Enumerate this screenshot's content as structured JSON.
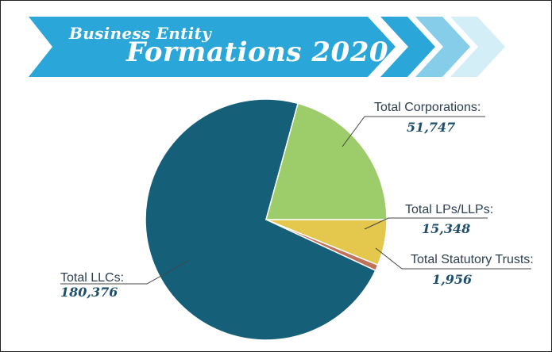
{
  "title": {
    "line1": "Business Entity",
    "line2": "Formations 2020"
  },
  "colors": {
    "banner": "#2aa6d8",
    "chevron_mid": "#86cdea",
    "chevron_light": "#d4eef8",
    "leader": "#444444"
  },
  "chart_data": {
    "type": "pie",
    "title": "Business Entity Formations 2020",
    "slices": [
      {
        "label": "Total Corporations:",
        "value": 51747,
        "value_text": "51,747",
        "color": "#9dcd6a"
      },
      {
        "label": "Total LPs/LLPs:",
        "value": 15348,
        "value_text": "15,348",
        "color": "#e4c84e"
      },
      {
        "label": "Total Statutory Trusts:",
        "value": 1956,
        "value_text": "1,956",
        "color": "#c0715a"
      },
      {
        "label": "Total LLCs:",
        "value": 180376,
        "value_text": "180,376",
        "color": "#155f79"
      }
    ]
  }
}
